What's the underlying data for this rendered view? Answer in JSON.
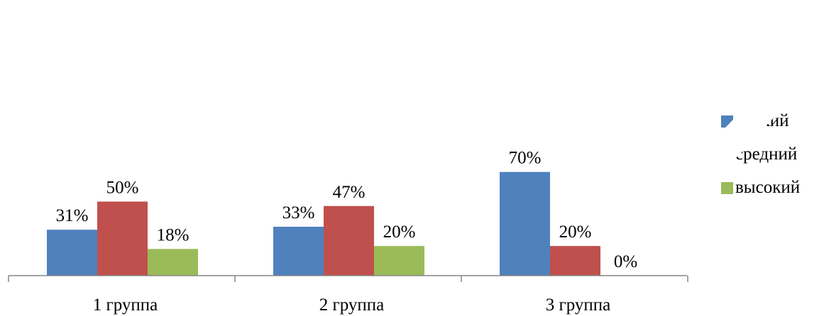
{
  "chart_data": {
    "type": "bar",
    "title": "",
    "xlabel": "",
    "ylabel": "",
    "categories": [
      "1 группа",
      "2 группа",
      "3 группа"
    ],
    "series": [
      {
        "name": "низкий",
        "values": [
          31,
          33,
          70
        ],
        "labels": [
          "31%",
          "33%",
          "70%"
        ],
        "color": "#4f81bd"
      },
      {
        "name": "средний",
        "values": [
          50,
          47,
          20
        ],
        "labels": [
          "50%",
          "47%",
          "20%"
        ],
        "color": "#c0504d"
      },
      {
        "name": "высокий",
        "values": [
          18,
          20,
          0
        ],
        "labels": [
          "18%",
          "20%",
          "0%"
        ],
        "color": "#9bbb59"
      }
    ],
    "ylim": [
      0,
      75
    ],
    "grid": false,
    "legend_position": "right"
  }
}
